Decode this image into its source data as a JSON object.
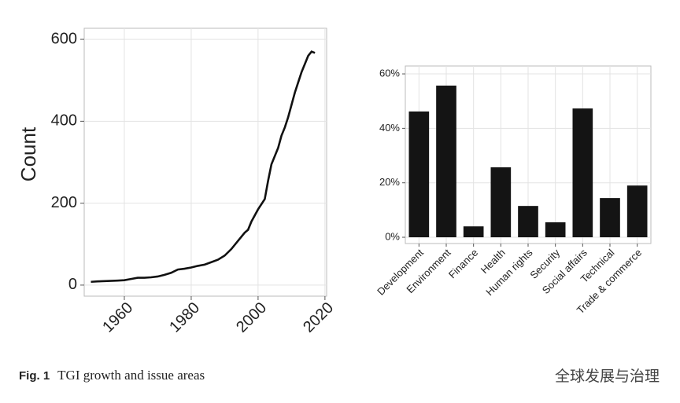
{
  "chart_data": [
    {
      "type": "line",
      "ylabel": "Count",
      "x": [
        1950,
        1952,
        1955,
        1958,
        1960,
        1962,
        1964,
        1966,
        1968,
        1970,
        1972,
        1974,
        1976,
        1978,
        1980,
        1982,
        1984,
        1986,
        1988,
        1990,
        1992,
        1994,
        1996,
        1997,
        1998,
        2000,
        2002,
        2003,
        2004,
        2006,
        2007,
        2008,
        2009,
        2010,
        2011,
        2012,
        2013,
        2014,
        2015,
        2016,
        2017
      ],
      "series": [
        {
          "color": "#111111",
          "values": [
            8,
            9,
            10,
            11,
            12,
            15,
            18,
            18,
            19,
            21,
            25,
            30,
            38,
            40,
            43,
            47,
            50,
            56,
            62,
            72,
            88,
            108,
            128,
            135,
            155,
            185,
            210,
            255,
            295,
            335,
            365,
            385,
            410,
            440,
            470,
            495,
            520,
            540,
            560,
            570,
            567
          ]
        }
      ],
      "xlim": [
        1948,
        2020.5
      ],
      "xticks": [
        1960,
        1980,
        2000,
        2020
      ],
      "ylim": [
        -27,
        627
      ],
      "yticks": [
        0,
        200,
        400,
        600
      ],
      "grid": true
    },
    {
      "type": "bar",
      "categories": [
        "Development",
        "Environment",
        "Finance",
        "Health",
        "Human rights",
        "Security",
        "Social affairs",
        "Technical",
        "Trade & commerce"
      ],
      "values": [
        46.2,
        55.7,
        4.0,
        25.7,
        11.5,
        5.5,
        47.3,
        14.4,
        19.0
      ],
      "color": "#141414",
      "ylim": [
        -2.3,
        62.9
      ],
      "yticks": [
        {
          "value": 0,
          "label": "0%"
        },
        {
          "value": 20,
          "label": "20%"
        },
        {
          "value": 40,
          "label": "40%"
        },
        {
          "value": 60,
          "label": "60%"
        }
      ],
      "grid": true
    }
  ],
  "caption": {
    "label": "Fig. 1",
    "text": "TGI growth and issue areas"
  },
  "watermark": "全球发展与治理"
}
